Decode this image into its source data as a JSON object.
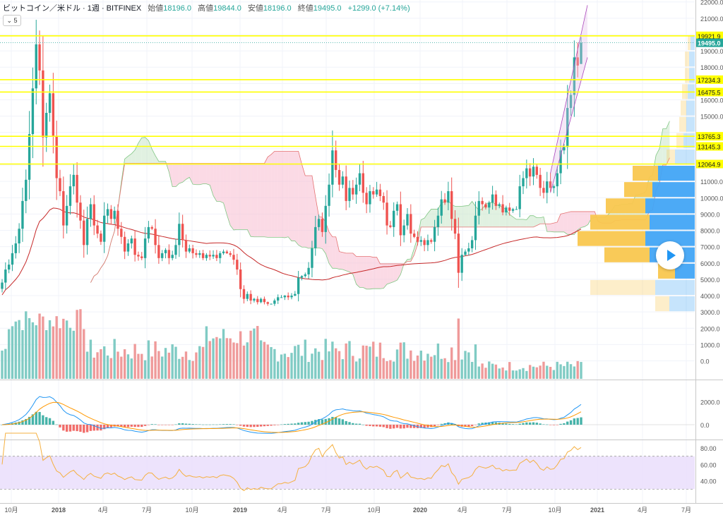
{
  "header": {
    "title": "ビットコイン／米ドル · 1週 · BITFINEX",
    "open_label": "始値",
    "open": "18196.0",
    "high_label": "高値",
    "high": "19844.0",
    "low_label": "安値",
    "low": "18196.0",
    "close_label": "終値",
    "close": "19495.0",
    "change": "+1299.0 (+7.14%)"
  },
  "indicator_toggle": "⌄ 5",
  "play_icon": "play-icon",
  "colors": {
    "up": "#26a69a",
    "down": "#ef5350",
    "level_line": "#ffff00",
    "ma": "#c62828",
    "macd": "#2196f3",
    "signal": "#ff9800",
    "rsi": "#f5b041",
    "rsi_band": "#e9dcfb",
    "cloud_bull": "#c8e6c9",
    "cloud_bear": "#f8bbd0",
    "vp_up": "#42a5f5",
    "vp_down": "#f9c74f"
  },
  "chart_data": [
    {
      "type": "candlestick",
      "pane": "price",
      "symbol": "BITFINEX BTC/USD 1W",
      "y_ticks": [
        "22000.0",
        "21000.0",
        "20000.0",
        "19000.0",
        "18000.0",
        "17000.0",
        "16000.0",
        "15000.0",
        "14000.0",
        "13000.0",
        "12000.0",
        "11000.0",
        "10000.0",
        "9000.0",
        "8000.0",
        "7000.0",
        "6000.0",
        "5000.0",
        "4000.0",
        "3000.0",
        "2000.0",
        "1000.0",
        "0.0"
      ],
      "ylim": [
        -500,
        22500
      ],
      "x_ticks": [
        "10月",
        "2018",
        "4月",
        "7月",
        "10月",
        "2019",
        "4月",
        "7月",
        "10月",
        "2020",
        "4月",
        "7月",
        "10月",
        "2021",
        "4月",
        "7月"
      ],
      "weekly_close": [
        4800,
        5600,
        5900,
        6600,
        7200,
        8100,
        9800,
        11100,
        13900,
        16700,
        19400,
        17800,
        13700,
        15200,
        16400,
        13800,
        11200,
        10400,
        8300,
        9500,
        10700,
        11400,
        9700,
        8600,
        7100,
        8700,
        9600,
        8300,
        7800,
        7300,
        8900,
        9300,
        8700,
        9200,
        8100,
        7600,
        6700,
        7200,
        7500,
        6500,
        6400,
        6300,
        7500,
        8200,
        8100,
        7100,
        6300,
        6600,
        6800,
        6300,
        6500,
        7100,
        8400,
        7400,
        6700,
        6900,
        6600,
        6500,
        6600,
        6300,
        6500,
        6400,
        6500,
        6300,
        6600,
        6700,
        6600,
        6500,
        6200,
        5600,
        4400,
        3800,
        4100,
        3700,
        3800,
        3600,
        3800,
        3600,
        3500,
        3500,
        3700,
        3900,
        3900,
        4000,
        3900,
        4000,
        4100,
        5100,
        5200,
        5300,
        5700,
        6900,
        8200,
        8700,
        7900,
        9500,
        10800,
        12900,
        11700,
        10800,
        11300,
        9800,
        10600,
        10200,
        10800,
        11500,
        10300,
        9600,
        10400,
        10200,
        10500,
        10100,
        9700,
        8300,
        8200,
        9200,
        9600,
        7700,
        8300,
        9000,
        7800,
        7600,
        7300,
        7400,
        7100,
        7400,
        7300,
        8200,
        8900,
        9900,
        9700,
        10400,
        8700,
        7800,
        5400,
        6500,
        6700,
        6900,
        7400,
        8900,
        9800,
        9600,
        9400,
        9700,
        10200,
        9500,
        9600,
        9100,
        9400,
        9200,
        9300,
        9300,
        10700,
        11200,
        11800,
        11300,
        11900,
        11400,
        10600,
        10300,
        11000,
        10600,
        10700,
        11500,
        12900,
        13100,
        15500,
        16300,
        18600,
        18100,
        19495
      ],
      "ohlc_last": {
        "open": 18196.0,
        "high": 19844.0,
        "low": 18196.0,
        "close": 19495.0
      }
    },
    {
      "type": "horizontal_levels",
      "pane": "price",
      "values": [
        19921.9,
        17234.3,
        16475.5,
        13765.3,
        13145.3,
        12064.9
      ],
      "labels": [
        "19921.9",
        "17234.3",
        "16475.5",
        "13765.3",
        "13145.3",
        "12064.9"
      ]
    },
    {
      "type": "price_label",
      "pane": "price",
      "value": 19495.0,
      "label": "19495.0"
    },
    {
      "type": "volume_profile",
      "pane": "price",
      "price_bins": [
        3000,
        4000,
        5000,
        6000,
        7000,
        8000,
        9000,
        10000,
        11000,
        12000,
        13000,
        14000,
        15000,
        16000,
        17000,
        18000,
        19000
      ],
      "up_volume": [
        0.18,
        0.28,
        0.14,
        0.32,
        0.35,
        0.32,
        0.35,
        0.3,
        0.26,
        0.14,
        0.08,
        0.06,
        0.06,
        0.05,
        0.04,
        0.04,
        0.03
      ],
      "down_volume": [
        0.1,
        0.46,
        0.12,
        0.32,
        0.48,
        0.42,
        0.28,
        0.2,
        0.18,
        0.06,
        0.05,
        0.05,
        0.04,
        0.04,
        0.03,
        0.03,
        0.02
      ]
    },
    {
      "type": "bar",
      "pane": "macd",
      "y_ticks": [
        "2000.0",
        "0.0"
      ],
      "ylim": [
        -1300,
        3400
      ]
    },
    {
      "type": "line",
      "pane": "rsi",
      "y_ticks": [
        "80.00",
        "60.00",
        "40.00"
      ],
      "ylim": [
        20,
        100
      ],
      "band": [
        30,
        70
      ]
    }
  ]
}
